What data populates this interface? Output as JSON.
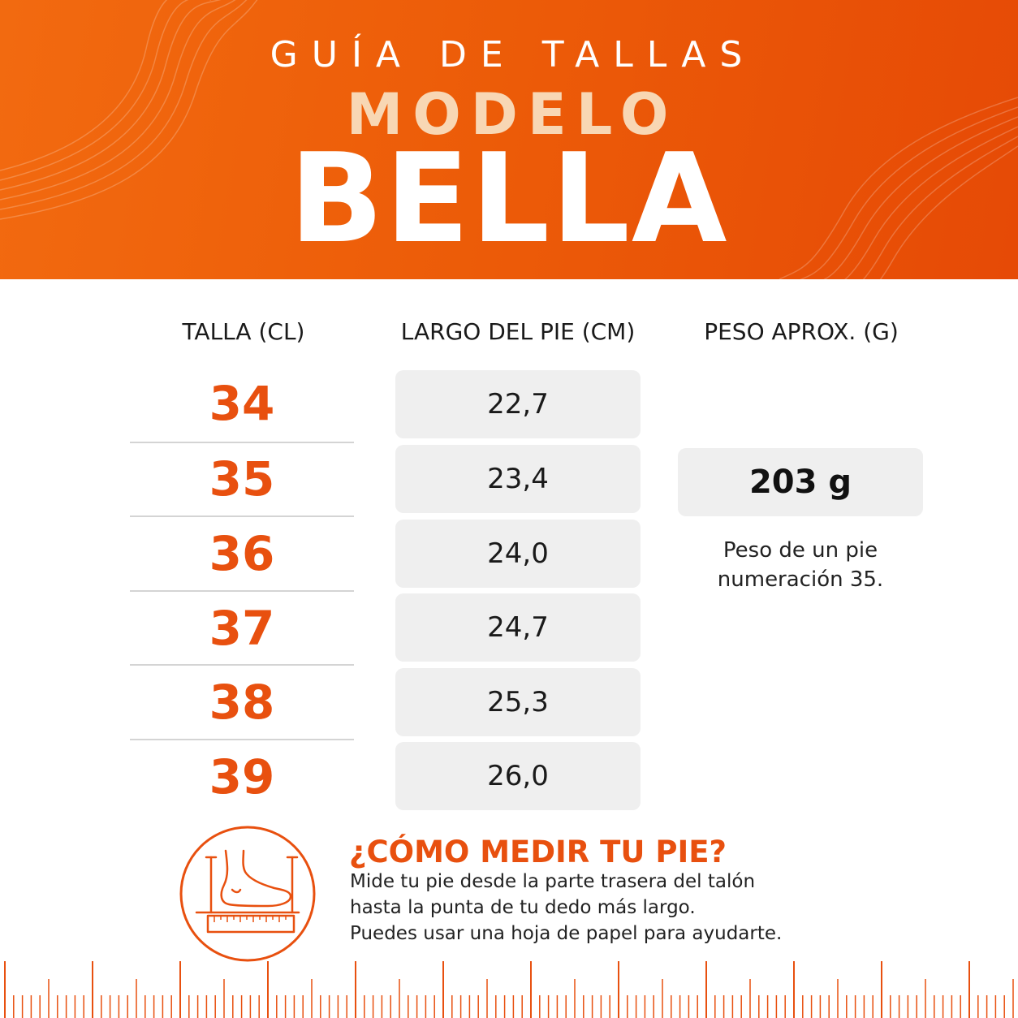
{
  "header": {
    "subtitle": "GUÍA DE TALLAS",
    "model_label": "MODELO",
    "model_name": "BELLA"
  },
  "table": {
    "headers": [
      "TALLA (CL)",
      "LARGO DEL PIE (CM)",
      "PESO APROX. (G)"
    ],
    "rows": [
      {
        "talla": "34",
        "largo": "22,7"
      },
      {
        "talla": "35",
        "largo": "23,4"
      },
      {
        "talla": "36",
        "largo": "24,0"
      },
      {
        "talla": "37",
        "largo": "24,7"
      },
      {
        "talla": "38",
        "largo": "25,3"
      },
      {
        "talla": "39",
        "largo": "26,0"
      }
    ],
    "peso": "203 g",
    "peso_note": [
      "Peso de un pie",
      "numeración 35."
    ]
  },
  "how_to": {
    "icon": "foot-measure-icon",
    "title": "¿CÓMO MEDIR TU PIE?",
    "lines": [
      "Mide tu pie desde la parte trasera del talón",
      "hasta la punta de tu dedo más largo.",
      "Puedes usar una hoja de papel para ayudarte."
    ]
  },
  "colors": {
    "accent": "#e8500f",
    "header_bg": "#ec5b08",
    "modelo_text": "#f8d7b4",
    "cell_bg": "#efefef"
  }
}
